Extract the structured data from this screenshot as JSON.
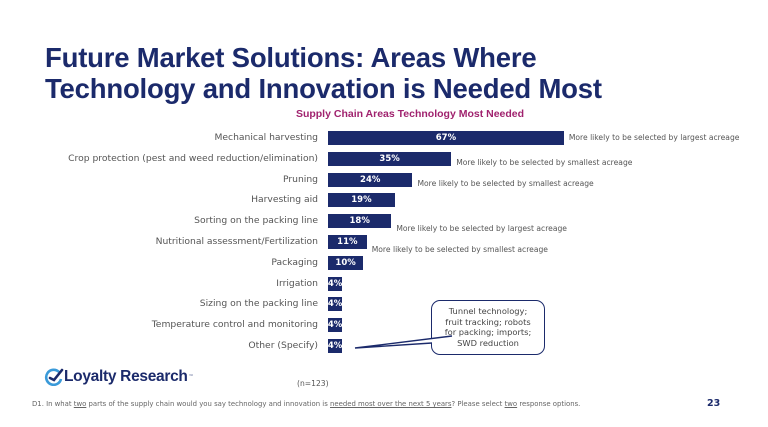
{
  "slide": {
    "title_line1": "Future Market Solutions: Areas Where",
    "title_line2": "Technology and Innovation is Needed Most",
    "subtitle": "Supply Chain Areas Technology Most Needed",
    "sample_size": "(n=123)",
    "footnote": {
      "part1": "D1. In what ",
      "u1": "two",
      "part2": " parts of the supply chain would you say technology and innovation is ",
      "u2": "needed most over the next 5 years",
      "part3": "? Please select ",
      "u3": "two",
      "part4": " response options."
    },
    "page_number": "23",
    "logo_text": "Loyalty Research",
    "logo_tm": "™",
    "callout_text_lines": [
      "Tunnel technology;",
      "fruit tracking; robots",
      "for packing; imports;",
      "SWD reduction"
    ]
  },
  "colors": {
    "bar": "#1b2a6b",
    "title": "#1b2a6b",
    "subtitle": "#a0226e",
    "logo_accent": "#3a9ad9"
  },
  "chart_data": {
    "type": "bar",
    "orientation": "horizontal",
    "title": "Supply Chain Areas Technology Most Needed",
    "xlabel": "",
    "ylabel": "",
    "categories": [
      "Mechanical harvesting",
      "Crop protection (pest and weed reduction/elimination)",
      "Pruning",
      "Harvesting aid",
      "Sorting on the packing line",
      "Nutritional assessment/Fertilization",
      "Packaging",
      "Irrigation",
      "Sizing on the packing line",
      "Temperature control and monitoring",
      "Other (Specify)"
    ],
    "values": [
      67,
      35,
      24,
      19,
      18,
      11,
      10,
      4,
      4,
      4,
      4
    ],
    "labels": [
      "67%",
      "35%",
      "24%",
      "19%",
      "18%",
      "11%",
      "10%",
      "4%",
      "4%",
      "4%",
      "4%"
    ],
    "annotations": [
      "More likely to be selected by largest acreage",
      "More likely to be selected by smallest acreage",
      "More likely to be selected by smallest acreage",
      "",
      "More likely to be selected by largest acreage",
      "More likely to be selected by smallest acreage",
      "",
      "",
      "",
      "",
      ""
    ],
    "callout": "Tunnel technology; fruit tracking; robots for packing; imports; SWD reduction",
    "unit": "%",
    "grid": false,
    "legend": false,
    "n": 123
  }
}
